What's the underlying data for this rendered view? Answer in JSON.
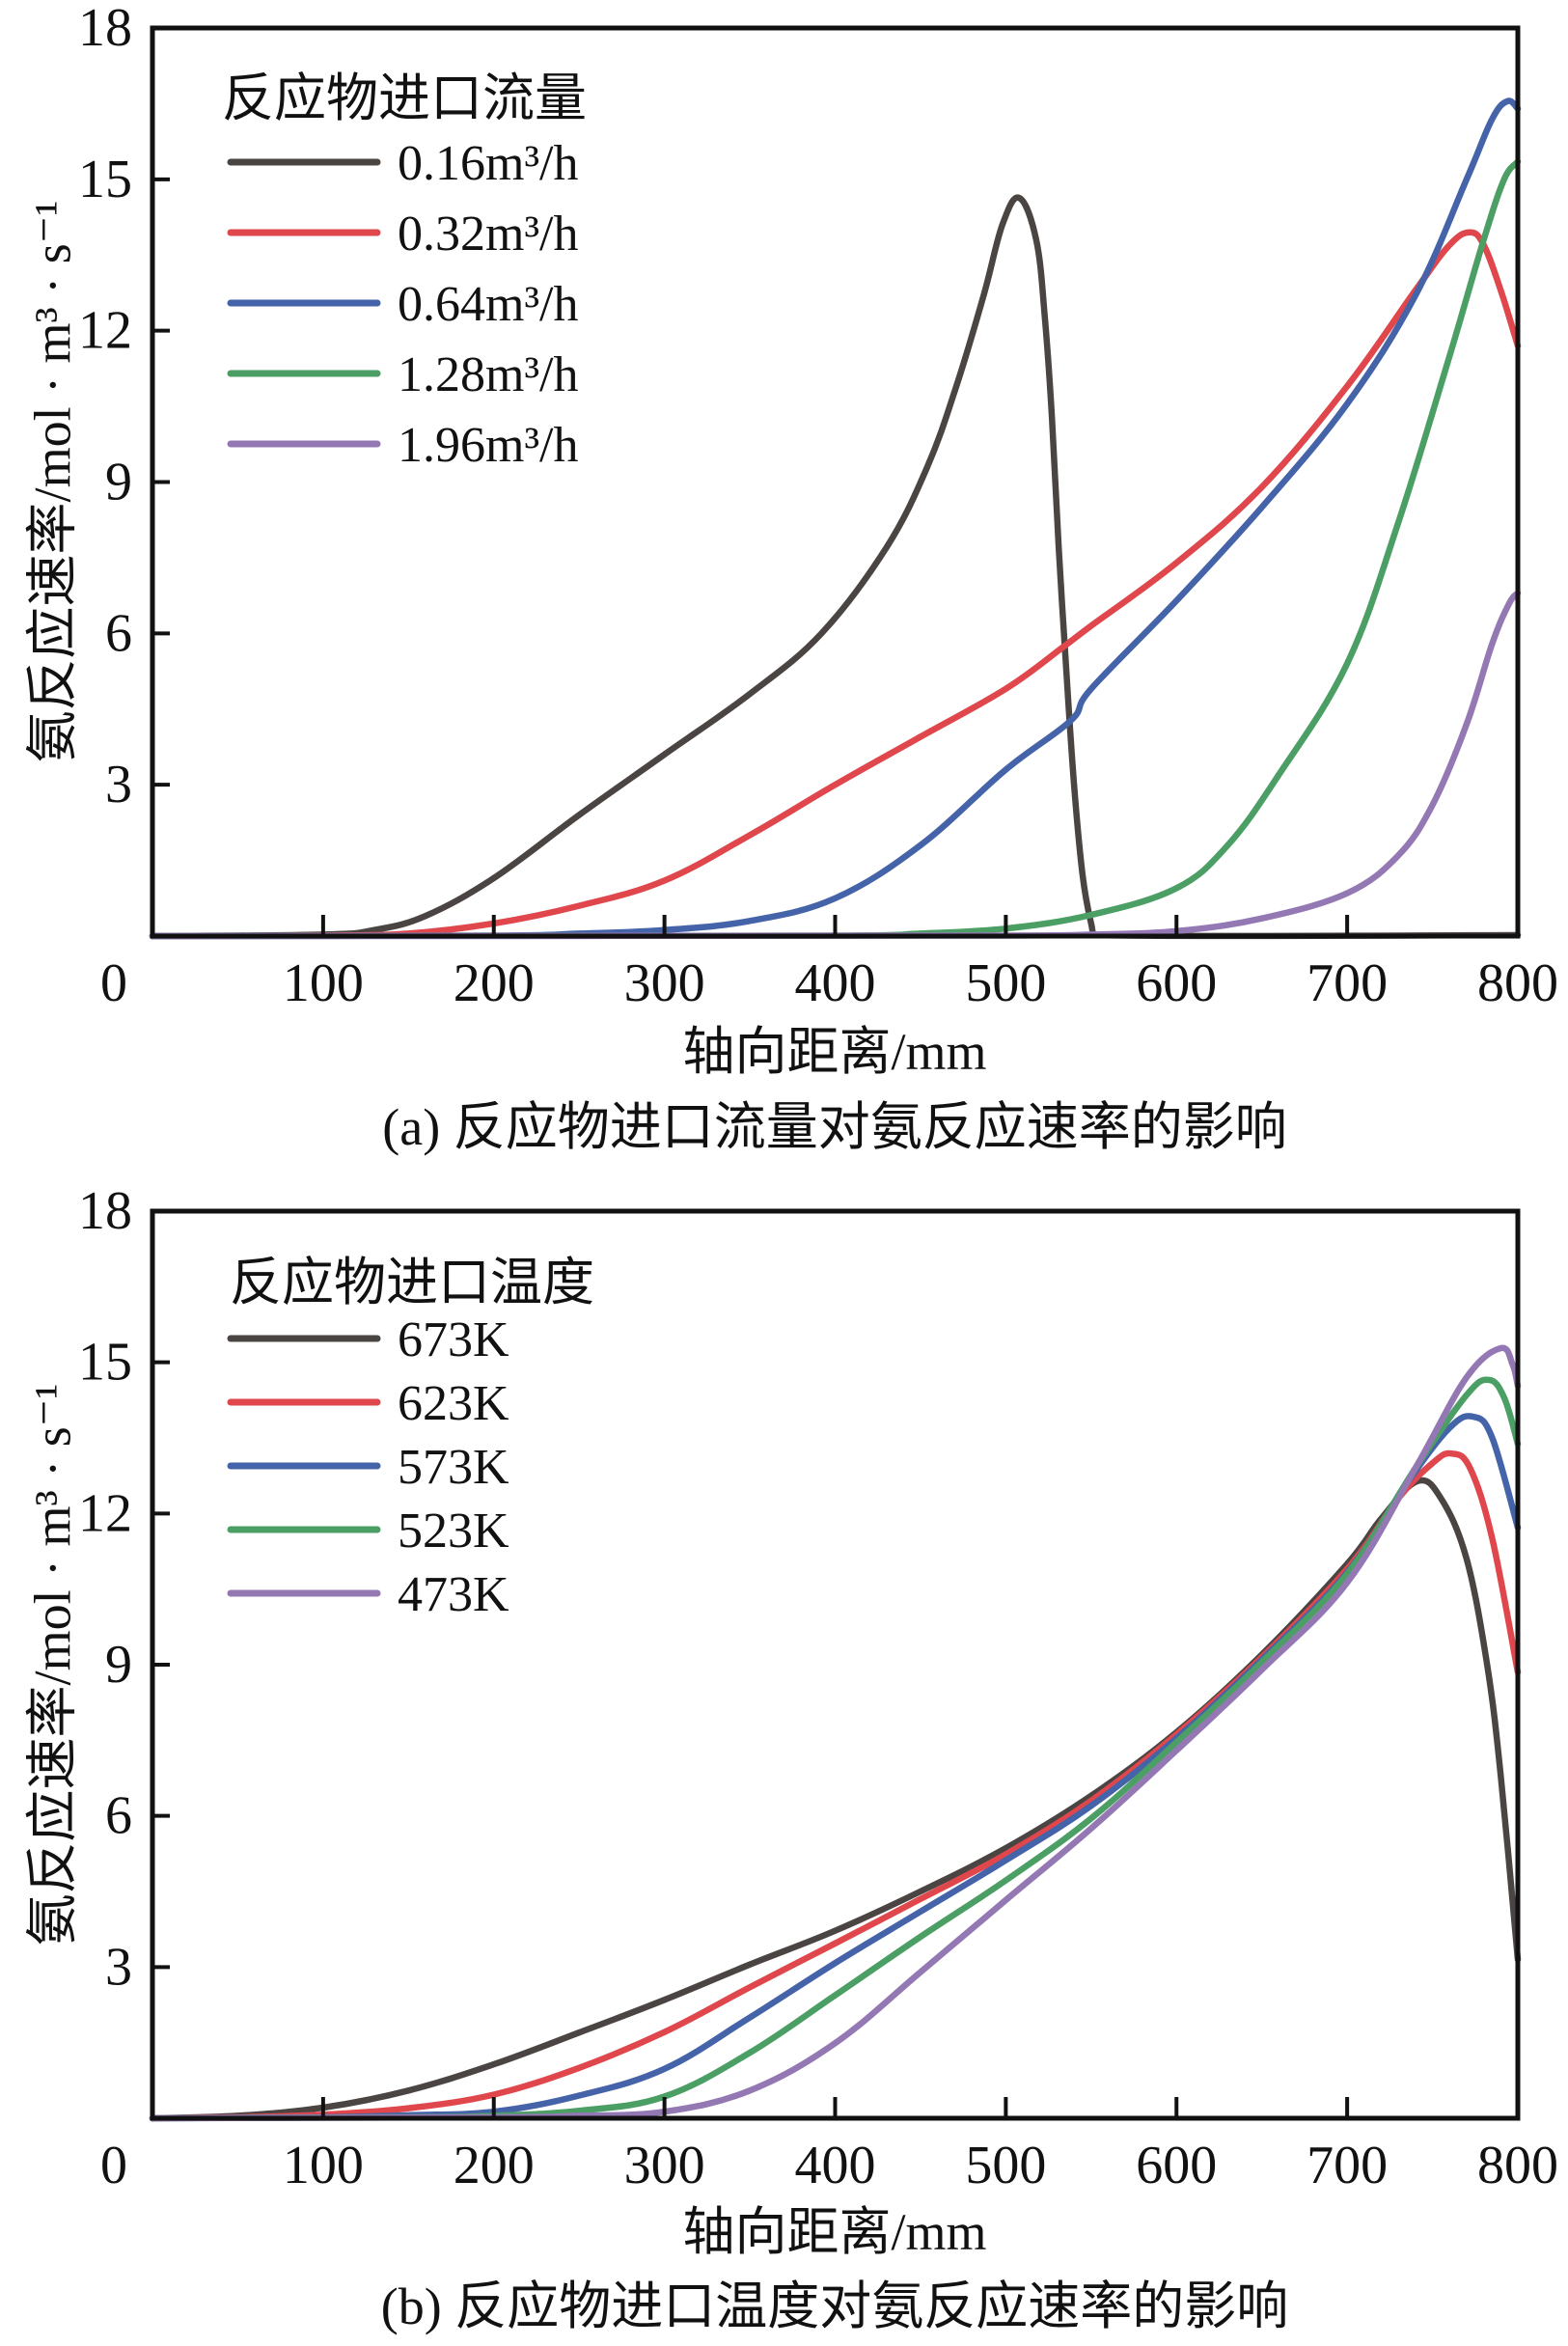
{
  "chart_data": [
    {
      "id": "a",
      "type": "line",
      "caption": "(a) 反应物进口流量对氨反应速率的影响",
      "xlabel": "轴向距离/mm",
      "ylabel": "氨反应速率/mol · m³ · s⁻¹",
      "xlim": [
        0,
        800
      ],
      "ylim": [
        0,
        18
      ],
      "xticks": [
        0,
        100,
        200,
        300,
        400,
        500,
        600,
        700,
        800
      ],
      "yticks": [
        3,
        6,
        9,
        12,
        15,
        18
      ],
      "grid": false,
      "legend": {
        "title": "反应物进口流量",
        "placement": "top-left"
      },
      "series": [
        {
          "name": "0.16m³/h",
          "color": "#4a4542",
          "points": [
            [
              0,
              0
            ],
            [
              100,
              0.03
            ],
            [
              130,
              0.12
            ],
            [
              160,
              0.4
            ],
            [
              200,
              1.15
            ],
            [
              250,
              2.4
            ],
            [
              300,
              3.6
            ],
            [
              350,
              4.8
            ],
            [
              392,
              6.0
            ],
            [
              430,
              7.7
            ],
            [
              454,
              9.3
            ],
            [
              471,
              10.9
            ],
            [
              487,
              12.7
            ],
            [
              498,
              14.1
            ],
            [
              508,
              14.63
            ],
            [
              518,
              13.77
            ],
            [
              523,
              12.2
            ],
            [
              527,
              10.3
            ],
            [
              531,
              7.7
            ],
            [
              535,
              5.5
            ],
            [
              540,
              3.0
            ],
            [
              545,
              1.2
            ],
            [
              550,
              0.25
            ],
            [
              553,
              0.02
            ],
            [
              800,
              0.02
            ]
          ]
        },
        {
          "name": "0.32m³/h",
          "color": "#e0474c",
          "points": [
            [
              0,
              0
            ],
            [
              100,
              0.01
            ],
            [
              150,
              0.05
            ],
            [
              200,
              0.25
            ],
            [
              250,
              0.6
            ],
            [
              300,
              1.1
            ],
            [
              350,
              2.0
            ],
            [
              400,
              3.0
            ],
            [
              450,
              3.95
            ],
            [
              500,
              4.9
            ],
            [
              534,
              5.74
            ],
            [
              550,
              6.15
            ],
            [
              600,
              7.4
            ],
            [
              650,
              8.9
            ],
            [
              700,
              10.9
            ],
            [
              740,
              12.8
            ],
            [
              760,
              13.7
            ],
            [
              772,
              13.95
            ],
            [
              780,
              13.7
            ],
            [
              790,
              12.8
            ],
            [
              800,
              11.7
            ]
          ]
        },
        {
          "name": "0.64m³/h",
          "color": "#4563a8",
          "points": [
            [
              0,
              0
            ],
            [
              200,
              0.01
            ],
            [
              250,
              0.05
            ],
            [
              300,
              0.12
            ],
            [
              350,
              0.3
            ],
            [
              400,
              0.75
            ],
            [
              450,
              1.8
            ],
            [
              500,
              3.3
            ],
            [
              538,
              4.27
            ],
            [
              550,
              4.9
            ],
            [
              600,
              6.65
            ],
            [
              650,
              8.5
            ],
            [
              700,
              10.55
            ],
            [
              740,
              12.7
            ],
            [
              770,
              15.0
            ],
            [
              785,
              16.2
            ],
            [
              794,
              16.55
            ],
            [
              800,
              16.4
            ]
          ]
        },
        {
          "name": "1.28m³/h",
          "color": "#4b9f64",
          "points": [
            [
              0,
              0
            ],
            [
              400,
              0.01
            ],
            [
              450,
              0.05
            ],
            [
              500,
              0.15
            ],
            [
              550,
              0.42
            ],
            [
              600,
              0.95
            ],
            [
              630,
              1.8
            ],
            [
              660,
              3.2
            ],
            [
              700,
              5.4
            ],
            [
              730,
              8.2
            ],
            [
              760,
              11.5
            ],
            [
              780,
              13.8
            ],
            [
              792,
              15.0
            ],
            [
              800,
              15.35
            ]
          ]
        },
        {
          "name": "1.96m³/h",
          "color": "#9478b4",
          "points": [
            [
              0,
              0
            ],
            [
              500,
              0.01
            ],
            [
              550,
              0.03
            ],
            [
              600,
              0.1
            ],
            [
              650,
              0.35
            ],
            [
              700,
              0.85
            ],
            [
              730,
              1.6
            ],
            [
              750,
              2.6
            ],
            [
              770,
              4.2
            ],
            [
              785,
              5.8
            ],
            [
              795,
              6.6
            ],
            [
              800,
              6.8
            ]
          ]
        }
      ]
    },
    {
      "id": "b",
      "type": "line",
      "caption": "(b) 反应物进口温度对氨反应速率的影响",
      "xlabel": "轴向距离/mm",
      "ylabel": "氨反应速率/mol · m³ · s⁻¹",
      "xlim": [
        0,
        800
      ],
      "ylim": [
        0,
        18
      ],
      "xticks": [
        0,
        100,
        200,
        300,
        400,
        500,
        600,
        700,
        800
      ],
      "yticks": [
        3,
        6,
        9,
        12,
        15,
        18
      ],
      "grid": false,
      "legend": {
        "title": "反应物进口温度",
        "placement": "top-left"
      },
      "series": [
        {
          "name": "673K",
          "color": "#4a4542",
          "points": [
            [
              0,
              0
            ],
            [
              50,
              0.05
            ],
            [
              100,
              0.21
            ],
            [
              150,
              0.55
            ],
            [
              200,
              1.07
            ],
            [
              250,
              1.7
            ],
            [
              300,
              2.35
            ],
            [
              350,
              3.05
            ],
            [
              400,
              3.72
            ],
            [
              450,
              4.5
            ],
            [
              500,
              5.36
            ],
            [
              550,
              6.4
            ],
            [
              600,
              7.66
            ],
            [
              650,
              9.2
            ],
            [
              700,
              11.0
            ],
            [
              720,
              11.9
            ],
            [
              741,
              12.64
            ],
            [
              755,
              12.3
            ],
            [
              770,
              11.1
            ],
            [
              782,
              9.0
            ],
            [
              790,
              6.8
            ],
            [
              800,
              3.15
            ]
          ]
        },
        {
          "name": "623K",
          "color": "#e0474c",
          "points": [
            [
              0,
              0
            ],
            [
              50,
              0.02
            ],
            [
              100,
              0.07
            ],
            [
              150,
              0.2
            ],
            [
              200,
              0.47
            ],
            [
              250,
              1.0
            ],
            [
              300,
              1.71
            ],
            [
              350,
              2.6
            ],
            [
              400,
              3.47
            ],
            [
              450,
              4.35
            ],
            [
              500,
              5.24
            ],
            [
              550,
              6.3
            ],
            [
              600,
              7.62
            ],
            [
              650,
              9.15
            ],
            [
              700,
              10.9
            ],
            [
              730,
              12.3
            ],
            [
              750,
              13.0
            ],
            [
              761,
              13.19
            ],
            [
              772,
              12.9
            ],
            [
              785,
              11.5
            ],
            [
              800,
              8.85
            ]
          ]
        },
        {
          "name": "573K",
          "color": "#4563a8",
          "points": [
            [
              0,
              0
            ],
            [
              100,
              0.02
            ],
            [
              150,
              0.06
            ],
            [
              200,
              0.13
            ],
            [
              250,
              0.45
            ],
            [
              300,
              0.98
            ],
            [
              350,
              2.0
            ],
            [
              400,
              3.08
            ],
            [
              450,
              4.1
            ],
            [
              500,
              5.12
            ],
            [
              550,
              6.2
            ],
            [
              600,
              7.54
            ],
            [
              650,
              9.1
            ],
            [
              700,
              10.83
            ],
            [
              735,
              12.6
            ],
            [
              760,
              13.7
            ],
            [
              774,
              13.92
            ],
            [
              785,
              13.5
            ],
            [
              800,
              11.72
            ]
          ]
        },
        {
          "name": "523K",
          "color": "#4b9f64",
          "points": [
            [
              0,
              0
            ],
            [
              150,
              0.02
            ],
            [
              200,
              0.05
            ],
            [
              250,
              0.15
            ],
            [
              300,
              0.43
            ],
            [
              350,
              1.3
            ],
            [
              400,
              2.44
            ],
            [
              450,
              3.6
            ],
            [
              500,
              4.72
            ],
            [
              550,
              5.95
            ],
            [
              600,
              7.46
            ],
            [
              650,
              9.05
            ],
            [
              700,
              10.8
            ],
            [
              740,
              12.9
            ],
            [
              770,
              14.35
            ],
            [
              783,
              14.65
            ],
            [
              792,
              14.3
            ],
            [
              800,
              13.38
            ]
          ]
        },
        {
          "name": "473K",
          "color": "#9478b4",
          "points": [
            [
              0,
              0
            ],
            [
              200,
              0.02
            ],
            [
              250,
              0.05
            ],
            [
              300,
              0.13
            ],
            [
              350,
              0.55
            ],
            [
              400,
              1.49
            ],
            [
              450,
              2.9
            ],
            [
              500,
              4.33
            ],
            [
              550,
              5.75
            ],
            [
              600,
              7.3
            ],
            [
              650,
              8.9
            ],
            [
              700,
              10.63
            ],
            [
              740,
              12.9
            ],
            [
              770,
              14.7
            ],
            [
              790,
              15.28
            ],
            [
              797,
              14.95
            ],
            [
              800,
              14.53
            ]
          ]
        }
      ]
    }
  ]
}
